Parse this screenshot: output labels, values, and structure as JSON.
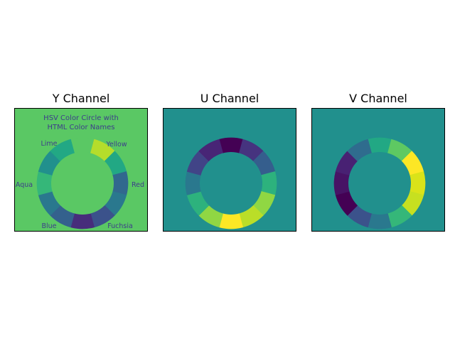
{
  "chart_data": [
    {
      "type": "heatmap",
      "title": "Y Channel",
      "background": "#5ac864",
      "ring_colors": [
        "#5ac864",
        "#b5dd2b",
        "#22a884",
        "#31688e",
        "#2a788e",
        "#3b528b",
        "#472d7b",
        "#34618d",
        "#2a788e",
        "#35b779",
        "#21908d",
        "#22a884"
      ],
      "image_heading": [
        "HSV Color Circle with",
        "HTML Color Names"
      ],
      "image_labels": [
        "Lime",
        "Yellow",
        "Aqua",
        "Red",
        "Blue",
        "Fuchsia"
      ]
    },
    {
      "type": "heatmap",
      "title": "U Channel",
      "background": "#21908d",
      "ring_colors": [
        "#440154",
        "#46337f",
        "#355e8d",
        "#2db27d",
        "#90d743",
        "#bade28",
        "#fde725",
        "#90d743",
        "#2db27d",
        "#2a788e",
        "#414487",
        "#482576"
      ]
    },
    {
      "type": "heatmap",
      "title": "V Channel",
      "background": "#21908d",
      "ring_colors": [
        "#22a884",
        "#5ec962",
        "#fde725",
        "#dae319",
        "#c7e020",
        "#35b779",
        "#2a788e",
        "#3b528b",
        "#440154",
        "#471365",
        "#482173",
        "#2f6c8e"
      ]
    }
  ]
}
